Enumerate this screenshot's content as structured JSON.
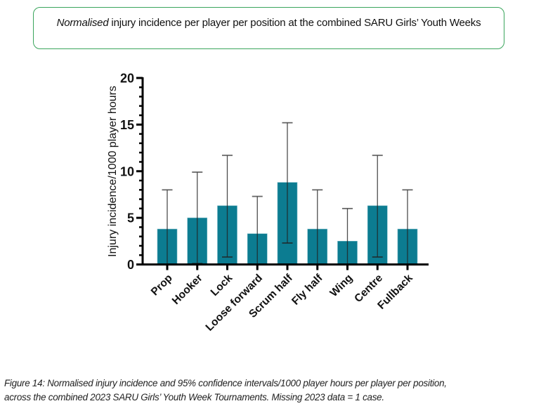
{
  "header": {
    "title_italic": "Normalised",
    "title_rest": " injury incidence per player per position at the combined SARU Girls’ Youth Weeks"
  },
  "caption": {
    "line1": "Figure 14: Normalised injury incidence and 95% confidence intervals/1000 player hours per player per position,",
    "line2": "across the combined 2023 SARU Girls’ Youth Week Tournaments. Missing 2023 data = 1 case."
  },
  "chart_data": {
    "type": "bar",
    "title": "Normalised injury incidence per player per position at the combined SARU Girls’ Youth Weeks",
    "xlabel": "",
    "ylabel": "Injury incidence/1000 player hours",
    "ylim": [
      0,
      20
    ],
    "yticks": [
      0,
      5,
      10,
      15,
      20
    ],
    "ytick_labels": [
      "0",
      "5",
      "10",
      "15",
      "20"
    ],
    "y_minor_step": 1,
    "grid": false,
    "legend": "none",
    "bar_color": "#0c7c91",
    "categories": [
      "Prop",
      "Hooker",
      "Lock",
      "Loose forward",
      "Scrum half",
      "Fly half",
      "Wing",
      "Centre",
      "Fullback"
    ],
    "values": [
      3.8,
      5.0,
      6.3,
      3.3,
      8.8,
      3.8,
      2.5,
      6.3,
      3.8
    ],
    "ci_lower": [
      0.0,
      0.1,
      0.8,
      0.0,
      2.3,
      0.0,
      0.0,
      0.8,
      0.0
    ],
    "ci_upper": [
      8.0,
      9.9,
      11.7,
      7.3,
      15.2,
      8.0,
      6.0,
      11.7,
      8.0
    ]
  }
}
